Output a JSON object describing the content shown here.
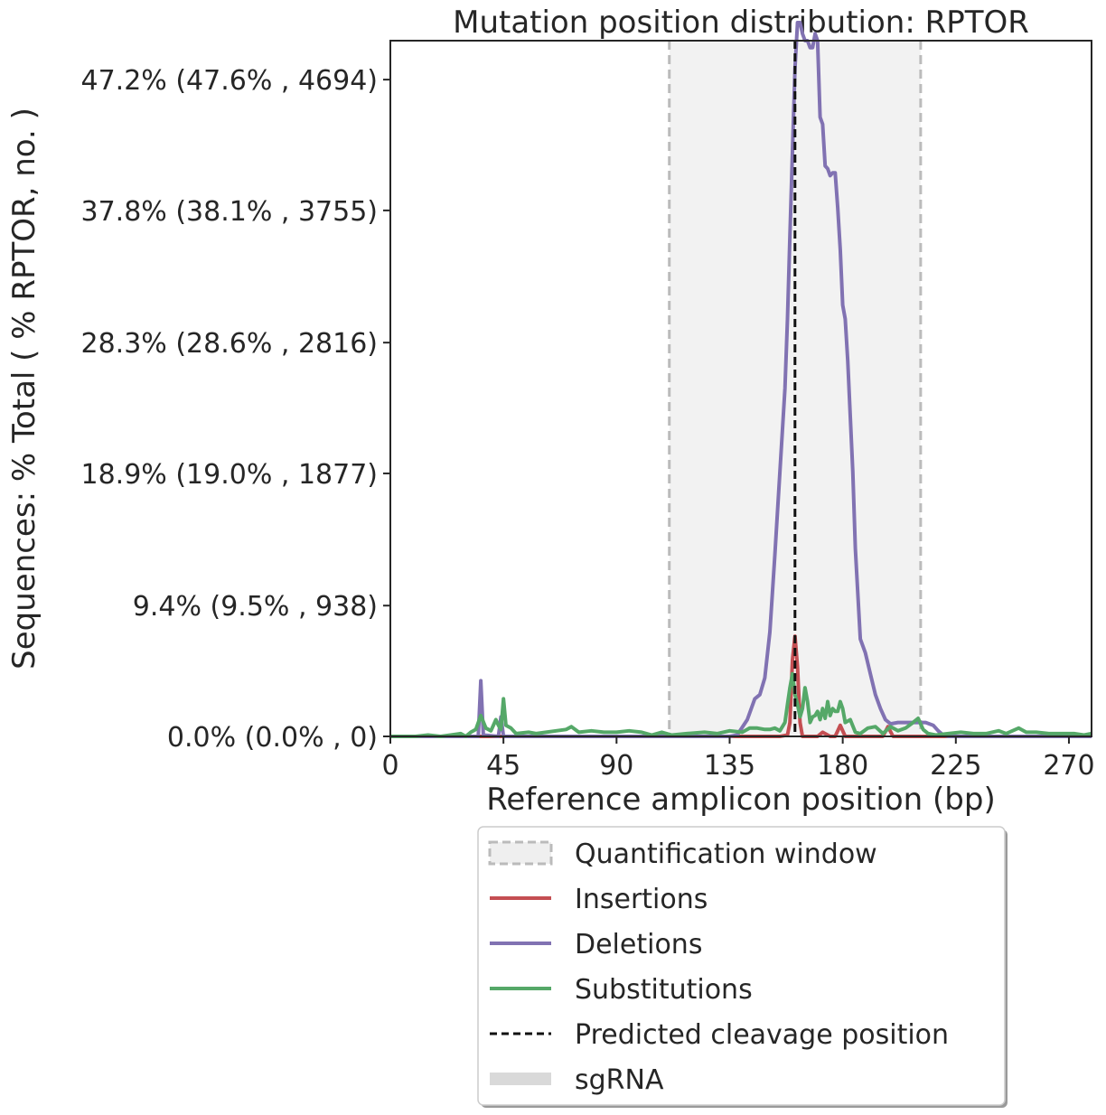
{
  "chart_data": {
    "type": "line",
    "title": "Mutation position distribution: RPTOR",
    "xlabel": "Reference amplicon position (bp)",
    "ylabel": "Sequences: % Total ( % RPTOR, no. )",
    "xlim": [
      0,
      279
    ],
    "ylim": [
      0,
      0.5
    ],
    "x_ticks": [
      0,
      45,
      90,
      135,
      180,
      225,
      270
    ],
    "y_ticks": [
      {
        "value": 0.0,
        "label": "0.0% (0.0% , 0)"
      },
      {
        "value": 0.094,
        "label": "9.4% (9.5% , 938)"
      },
      {
        "value": 0.189,
        "label": "18.9% (19.0% , 1877)"
      },
      {
        "value": 0.283,
        "label": "28.3% (28.6% , 2816)"
      },
      {
        "value": 0.378,
        "label": "37.8% (38.1% , 3755)"
      },
      {
        "value": 0.472,
        "label": "47.2% (47.6% , 4694)"
      }
    ],
    "quantification_window": [
      111,
      211
    ],
    "cleavage_position": 161,
    "grid": false,
    "legend_position": "below",
    "series": [
      {
        "name": "Insertions",
        "color": "#c44e52",
        "points": [
          [
            0,
            0
          ],
          [
            155,
            0
          ],
          [
            158,
            0.001
          ],
          [
            159,
            0.01
          ],
          [
            160,
            0.055
          ],
          [
            161,
            0.072
          ],
          [
            162,
            0.05
          ],
          [
            163,
            0.01
          ],
          [
            164,
            0
          ],
          [
            170,
            0
          ],
          [
            172,
            0.003
          ],
          [
            175,
            0
          ],
          [
            177,
            0
          ],
          [
            179,
            0.008
          ],
          [
            181,
            0
          ],
          [
            196,
            0
          ],
          [
            198,
            0.007
          ],
          [
            200,
            0
          ],
          [
            279,
            0
          ]
        ]
      },
      {
        "name": "Deletions",
        "color": "#8172b2",
        "points": [
          [
            0,
            0
          ],
          [
            35,
            0
          ],
          [
            36,
            0.04
          ],
          [
            37,
            0.001
          ],
          [
            43,
            0
          ],
          [
            44,
            0.014
          ],
          [
            45,
            0
          ],
          [
            135,
            0
          ],
          [
            138,
            0.001
          ],
          [
            142,
            0.012
          ],
          [
            145,
            0.027
          ],
          [
            147,
            0.03
          ],
          [
            149,
            0.042
          ],
          [
            151,
            0.075
          ],
          [
            153,
            0.13
          ],
          [
            155,
            0.19
          ],
          [
            157,
            0.25
          ],
          [
            158,
            0.3
          ],
          [
            159,
            0.36
          ],
          [
            160,
            0.42
          ],
          [
            161,
            0.48
          ],
          [
            162,
            0.513
          ],
          [
            163,
            0.513
          ],
          [
            164,
            0.505
          ],
          [
            165,
            0.5
          ],
          [
            166,
            0.5
          ],
          [
            167,
            0.495
          ],
          [
            168,
            0.495
          ],
          [
            169,
            0.505
          ],
          [
            170,
            0.5
          ],
          [
            171,
            0.445
          ],
          [
            172,
            0.44
          ],
          [
            173,
            0.41
          ],
          [
            174,
            0.408
          ],
          [
            175,
            0.403
          ],
          [
            176,
            0.405
          ],
          [
            177,
            0.405
          ],
          [
            178,
            0.38
          ],
          [
            179,
            0.35
          ],
          [
            180,
            0.31
          ],
          [
            181,
            0.3
          ],
          [
            182,
            0.27
          ],
          [
            183,
            0.23
          ],
          [
            184,
            0.19
          ],
          [
            185,
            0.135
          ],
          [
            187,
            0.07
          ],
          [
            189,
            0.06
          ],
          [
            191,
            0.045
          ],
          [
            193,
            0.03
          ],
          [
            195,
            0.02
          ],
          [
            197,
            0.012
          ],
          [
            199,
            0.009
          ],
          [
            202,
            0.01
          ],
          [
            206,
            0.01
          ],
          [
            210,
            0.01
          ],
          [
            213,
            0.01
          ],
          [
            216,
            0.008
          ],
          [
            218,
            0.004
          ],
          [
            220,
            0.001
          ],
          [
            222,
            0
          ],
          [
            279,
            0
          ]
        ]
      },
      {
        "name": "Substitutions",
        "color": "#55a868",
        "points": [
          [
            0,
            0
          ],
          [
            10,
            0
          ],
          [
            15,
            0.001
          ],
          [
            20,
            0
          ],
          [
            24,
            0.001
          ],
          [
            28,
            0.002
          ],
          [
            30,
            0
          ],
          [
            32,
            0.003
          ],
          [
            34,
            0.005
          ],
          [
            36,
            0.015
          ],
          [
            38,
            0.006
          ],
          [
            40,
            0.004
          ],
          [
            42,
            0.012
          ],
          [
            43,
            0.008
          ],
          [
            44,
            0.005
          ],
          [
            45,
            0.027
          ],
          [
            46,
            0.008
          ],
          [
            48,
            0.006
          ],
          [
            50,
            0.002
          ],
          [
            55,
            0.003
          ],
          [
            58,
            0.002
          ],
          [
            62,
            0.003
          ],
          [
            66,
            0.004
          ],
          [
            70,
            0.005
          ],
          [
            72,
            0.007
          ],
          [
            75,
            0.003
          ],
          [
            80,
            0.004
          ],
          [
            85,
            0.003
          ],
          [
            90,
            0.003
          ],
          [
            95,
            0.004
          ],
          [
            100,
            0.003
          ],
          [
            104,
            0.001
          ],
          [
            108,
            0.003
          ],
          [
            112,
            0.001
          ],
          [
            118,
            0.002
          ],
          [
            125,
            0.003
          ],
          [
            130,
            0.002
          ],
          [
            135,
            0.004
          ],
          [
            140,
            0.003
          ],
          [
            143,
            0.006
          ],
          [
            146,
            0.006
          ],
          [
            149,
            0.005
          ],
          [
            151,
            0.005
          ],
          [
            153,
            0.006
          ],
          [
            155,
            0.004
          ],
          [
            157,
            0.01
          ],
          [
            158,
            0.023
          ],
          [
            159,
            0.035
          ],
          [
            160,
            0.045
          ],
          [
            161,
            0.03
          ],
          [
            162,
            0.023
          ],
          [
            163,
            0.014
          ],
          [
            164,
            0.02
          ],
          [
            165,
            0.035
          ],
          [
            166,
            0.025
          ],
          [
            167,
            0.01
          ],
          [
            168,
            0.014
          ],
          [
            169,
            0.015
          ],
          [
            170,
            0.018
          ],
          [
            171,
            0.012
          ],
          [
            172,
            0.02
          ],
          [
            173,
            0.013
          ],
          [
            174,
            0.025
          ],
          [
            175,
            0.015
          ],
          [
            176,
            0.02
          ],
          [
            177,
            0.018
          ],
          [
            178,
            0.018
          ],
          [
            179,
            0.025
          ],
          [
            180,
            0.02
          ],
          [
            181,
            0.01
          ],
          [
            183,
            0.012
          ],
          [
            185,
            0.003
          ],
          [
            187,
            0.002
          ],
          [
            190,
            0.006
          ],
          [
            193,
            0.007
          ],
          [
            196,
            0.002
          ],
          [
            199,
            0.007
          ],
          [
            202,
            0.004
          ],
          [
            205,
            0.006
          ],
          [
            208,
            0.01
          ],
          [
            210,
            0.013
          ],
          [
            212,
            0.005
          ],
          [
            214,
            0.002
          ],
          [
            217,
            0.001
          ],
          [
            222,
            0.002
          ],
          [
            227,
            0.003
          ],
          [
            232,
            0.002
          ],
          [
            237,
            0.002
          ],
          [
            242,
            0.004
          ],
          [
            245,
            0.002
          ],
          [
            250,
            0.006
          ],
          [
            253,
            0.003
          ],
          [
            257,
            0.003
          ],
          [
            262,
            0.002
          ],
          [
            267,
            0.002
          ],
          [
            272,
            0.002
          ],
          [
            276,
            0.001
          ],
          [
            279,
            0.002
          ]
        ]
      }
    ],
    "legend": [
      {
        "label": "Quantification window",
        "kind": "window"
      },
      {
        "label": "Insertions",
        "kind": "line",
        "color": "#c44e52"
      },
      {
        "label": "Deletions",
        "kind": "line",
        "color": "#8172b2"
      },
      {
        "label": "Substitutions",
        "kind": "line",
        "color": "#55a868"
      },
      {
        "label": "Predicted cleavage position",
        "kind": "dashed",
        "color": "#111111"
      },
      {
        "label": "sgRNA",
        "kind": "bar",
        "color": "#d9d9d9"
      }
    ]
  }
}
